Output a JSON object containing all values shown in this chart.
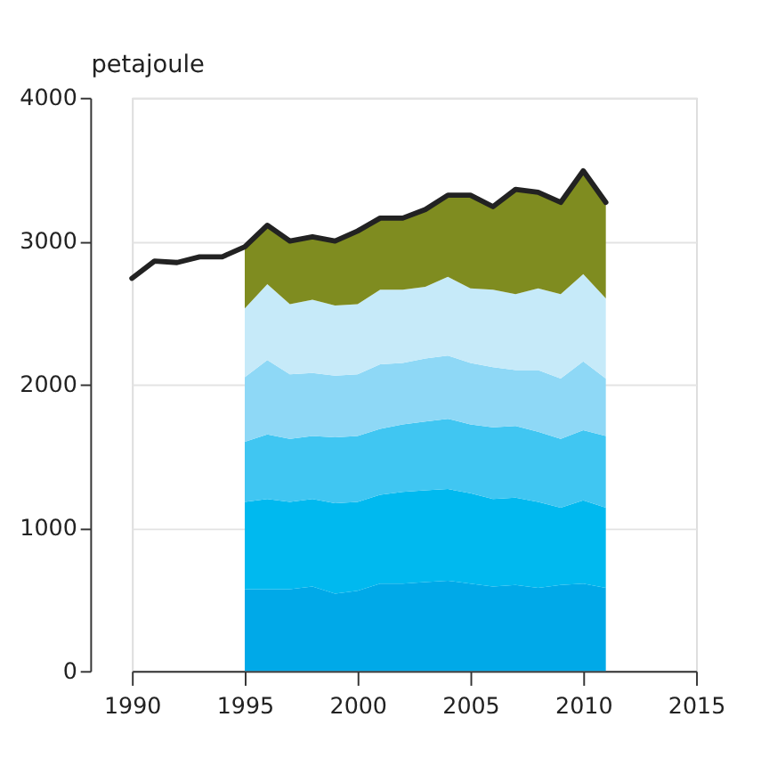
{
  "chart_data": {
    "type": "area",
    "stacked": true,
    "ylabel": "petajoule",
    "xlim": [
      1990,
      2015
    ],
    "xticks": [
      1990,
      1995,
      2000,
      2005,
      2010,
      2015
    ],
    "ylim": [
      0,
      4000
    ],
    "yticks": [
      0,
      1000,
      2000,
      3000,
      4000
    ],
    "grid": "y",
    "legend": false,
    "x": [
      1995,
      1996,
      1997,
      1998,
      1999,
      2000,
      2001,
      2002,
      2003,
      2004,
      2005,
      2006,
      2007,
      2008,
      2009,
      2010,
      2011
    ],
    "series": [
      {
        "color": "#00a9e8",
        "values": [
          570,
          570,
          570,
          590,
          540,
          560,
          610,
          610,
          620,
          630,
          610,
          590,
          600,
          580,
          600,
          610,
          580
        ]
      },
      {
        "color": "#00b9ef",
        "values": [
          610,
          630,
          610,
          610,
          630,
          620,
          620,
          640,
          640,
          640,
          630,
          610,
          610,
          600,
          540,
          580,
          560
        ]
      },
      {
        "color": "#40c6f2",
        "values": [
          420,
          450,
          440,
          440,
          460,
          460,
          460,
          470,
          480,
          490,
          480,
          500,
          500,
          490,
          480,
          490,
          500
        ]
      },
      {
        "color": "#8ed8f6",
        "values": [
          450,
          520,
          450,
          440,
          430,
          430,
          450,
          430,
          440,
          440,
          430,
          420,
          390,
          430,
          420,
          480,
          400
        ]
      },
      {
        "color": "#c6eaf9",
        "values": [
          480,
          530,
          490,
          510,
          490,
          490,
          520,
          510,
          500,
          550,
          520,
          540,
          530,
          570,
          590,
          610,
          560
        ]
      },
      {
        "color": "#7f8c20",
        "values": [
          430,
          420,
          440,
          440,
          460,
          500,
          500,
          500,
          550,
          580,
          650,
          580,
          720,
          670,
          640,
          720,
          670
        ]
      },
      {
        "type": "line",
        "color": "#222222",
        "x": [
          1990,
          1991,
          1992,
          1993,
          1994,
          1995,
          1996,
          1997,
          1998,
          1999,
          2000,
          2001,
          2002,
          2003,
          2004,
          2005,
          2006,
          2007,
          2008,
          2009,
          2010,
          2011
        ],
        "values": [
          2740,
          2860,
          2850,
          2890,
          2890,
          2960,
          3110,
          3000,
          3030,
          3000,
          3070,
          3160,
          3160,
          3220,
          3320,
          3320,
          3240,
          3360,
          3340,
          3270,
          3490,
          3270
        ]
      }
    ]
  }
}
